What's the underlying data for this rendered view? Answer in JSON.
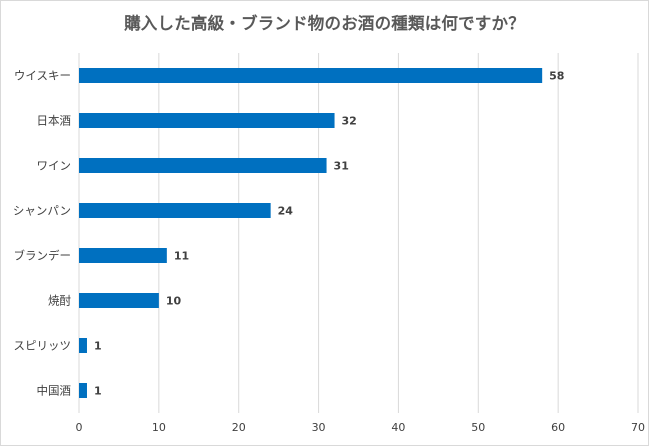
{
  "chart_data": {
    "type": "bar",
    "orientation": "horizontal",
    "title": "購入した高級・ブランド物のお酒の種類は何ですか？",
    "categories": [
      "ウイスキー",
      "日本酒",
      "ワイン",
      "シャンパン",
      "ブランデー",
      "焼酎",
      "スピリッツ",
      "中国酒"
    ],
    "values": [
      58,
      32,
      31,
      24,
      11,
      10,
      1,
      1
    ],
    "xlim": [
      0,
      70
    ],
    "xticks": [
      0,
      10,
      20,
      30,
      40,
      50,
      60,
      70
    ],
    "xlabel": "",
    "ylabel": "",
    "grid": "vertical",
    "data_labels": true,
    "legend": "none",
    "bar_color": "#0070c0",
    "grid_color": "#d9d9d9"
  }
}
